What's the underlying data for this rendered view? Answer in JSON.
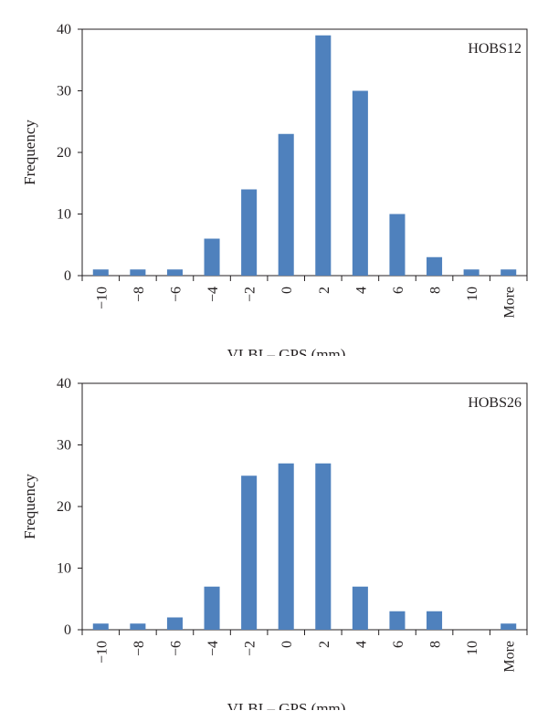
{
  "chart_data": [
    {
      "type": "bar",
      "categories": [
        "−10",
        "−8",
        "−6",
        "−4",
        "−2",
        "0",
        "2",
        "4",
        "6",
        "8",
        "10",
        "More"
      ],
      "series": [
        {
          "values": [
            1,
            1,
            1,
            6,
            14,
            23,
            39,
            30,
            10,
            3,
            1,
            1
          ]
        }
      ],
      "annotation": "HOBS12",
      "xlabel": "VLBI – GPS (mm)",
      "ylabel": "Frequency",
      "ylim": [
        0,
        40
      ],
      "yticks": [
        0,
        10,
        20,
        30,
        40
      ],
      "grid": false,
      "bar_color": "#4f81bd"
    },
    {
      "type": "bar",
      "categories": [
        "−10",
        "−8",
        "−6",
        "−4",
        "−2",
        "0",
        "2",
        "4",
        "6",
        "8",
        "10",
        "More"
      ],
      "series": [
        {
          "values": [
            1,
            1,
            2,
            7,
            25,
            27,
            27,
            7,
            3,
            3,
            0,
            1
          ]
        }
      ],
      "annotation": "HOBS26",
      "xlabel": "VLBI – GPS (mm)",
      "ylabel": "Frequency",
      "ylim": [
        0,
        40
      ],
      "yticks": [
        0,
        10,
        20,
        30,
        40
      ],
      "grid": false,
      "bar_color": "#4f81bd"
    }
  ]
}
